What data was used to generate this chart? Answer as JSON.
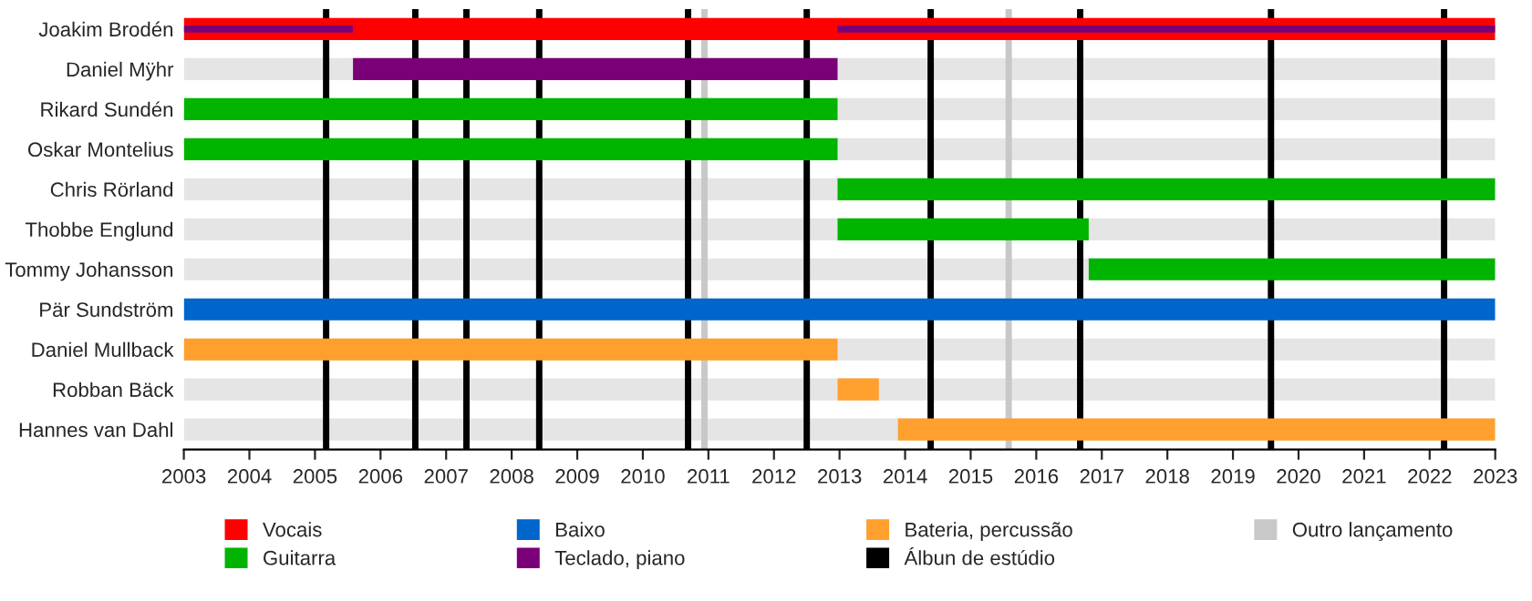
{
  "chart_data": {
    "type": "bar",
    "orientation": "horizontal",
    "categories": [
      "Joakim Brodén",
      "Daniel Mÿhr",
      "Rikard Sundén",
      "Oskar Montelius",
      "Chris Rörland",
      "Thobbe Englund",
      "Tommy Johansson",
      "Pär Sundström",
      "Daniel Mullback",
      "Robban Bäck",
      "Hannes van Dahl"
    ],
    "series": [
      {
        "name": "Vocais",
        "color": "#ff0000",
        "base": [
          2003,
          null,
          null,
          null,
          null,
          null,
          null,
          null,
          null,
          null,
          null
        ],
        "values": [
          20,
          null,
          null,
          null,
          null,
          null,
          null,
          null,
          null,
          null,
          null
        ]
      },
      {
        "name": "Guitarra",
        "color": "#00b400",
        "base": [
          null,
          null,
          2003,
          2003,
          2012.97,
          2012.97,
          2016.8,
          null,
          null,
          null,
          null
        ],
        "values": [
          null,
          null,
          9.97,
          9.97,
          10.03,
          3.83,
          6.2,
          null,
          null,
          null,
          null
        ]
      },
      {
        "name": "Baixo",
        "color": "#0066cc",
        "base": [
          null,
          null,
          null,
          null,
          null,
          null,
          null,
          2003,
          null,
          null,
          null
        ],
        "values": [
          null,
          null,
          null,
          null,
          null,
          null,
          null,
          20,
          null,
          null,
          null
        ]
      },
      {
        "name": "Teclado, piano",
        "color": "#7a0078",
        "base": [
          2003,
          2005.58,
          null,
          null,
          null,
          null,
          null,
          null,
          null,
          null,
          null
        ],
        "values": [
          2.58,
          7.39,
          null,
          null,
          null,
          null,
          null,
          null,
          null,
          null,
          null
        ]
      },
      {
        "color": "#7a0078",
        "base": [
          2012.97,
          null,
          null,
          null,
          null,
          null,
          null,
          null,
          null,
          null,
          null
        ],
        "values": [
          10.03,
          null,
          null,
          null,
          null,
          null,
          null,
          null,
          null,
          null,
          null
        ]
      },
      {
        "name": "Bateria, percussão",
        "color": "#ffa02e",
        "base": [
          null,
          null,
          null,
          null,
          null,
          null,
          null,
          null,
          2003,
          2012.97,
          2013.89
        ],
        "values": [
          null,
          null,
          null,
          null,
          null,
          null,
          null,
          null,
          9.97,
          0.63,
          9.11
        ]
      }
    ],
    "ref_lines": [
      {
        "axis": "x",
        "value": 2005.17,
        "label": "Álbun de estúdio",
        "color": "#000000"
      },
      {
        "axis": "x",
        "value": 2006.53,
        "color": "#000000"
      },
      {
        "axis": "x",
        "value": 2007.31,
        "color": "#000000"
      },
      {
        "axis": "x",
        "value": 2008.42,
        "color": "#000000"
      },
      {
        "axis": "x",
        "value": 2010.69,
        "color": "#000000"
      },
      {
        "axis": "x",
        "value": 2012.5,
        "color": "#000000"
      },
      {
        "axis": "x",
        "value": 2014.39,
        "color": "#000000"
      },
      {
        "axis": "x",
        "value": 2016.67,
        "color": "#000000"
      },
      {
        "axis": "x",
        "value": 2019.58,
        "color": "#000000"
      },
      {
        "axis": "x",
        "value": 2022.22,
        "color": "#000000"
      },
      {
        "axis": "x",
        "value": 2010.94,
        "label": "Outro lançamento",
        "color": "#c8c8c8"
      },
      {
        "axis": "x",
        "value": 2015.58,
        "color": "#c8c8c8"
      }
    ],
    "xlim": [
      2003,
      2023
    ],
    "xticks": [
      2003,
      2004,
      2005,
      2006,
      2007,
      2008,
      2009,
      2010,
      2011,
      2012,
      2013,
      2014,
      2015,
      2016,
      2017,
      2018,
      2019,
      2020,
      2021,
      2022,
      2023
    ],
    "grid": false,
    "legend": "bottom"
  }
}
